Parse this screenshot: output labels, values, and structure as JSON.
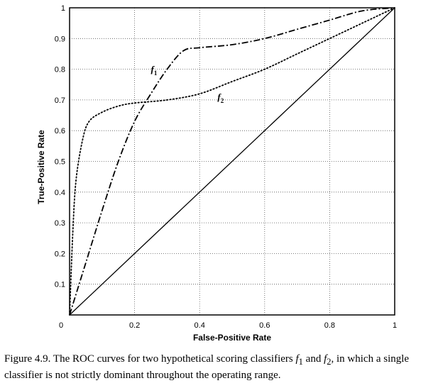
{
  "chart_data": {
    "type": "line",
    "xlabel": "False-Positive Rate",
    "ylabel": "True-Positive Rate",
    "xlim": [
      0,
      1
    ],
    "ylim": [
      0,
      1
    ],
    "grid": true,
    "x_ticks": [
      {
        "value": 0,
        "label": "0"
      },
      {
        "value": 0.2,
        "label": "0.2"
      },
      {
        "value": 0.4,
        "label": "0.4"
      },
      {
        "value": 0.6,
        "label": "0.6"
      },
      {
        "value": 0.8,
        "label": "0.8"
      },
      {
        "value": 1,
        "label": "1"
      }
    ],
    "y_ticks": [
      {
        "value": 0.1,
        "label": "0.1"
      },
      {
        "value": 0.2,
        "label": "0.2"
      },
      {
        "value": 0.3,
        "label": "0.3"
      },
      {
        "value": 0.4,
        "label": "0.4"
      },
      {
        "value": 0.5,
        "label": "0.5"
      },
      {
        "value": 0.6,
        "label": "0.6"
      },
      {
        "value": 0.7,
        "label": "0.7"
      },
      {
        "value": 0.8,
        "label": "0.8"
      },
      {
        "value": 0.9,
        "label": "0.9"
      },
      {
        "value": 1,
        "label": "1"
      }
    ],
    "series": [
      {
        "name": "f1",
        "label_base": "f",
        "label_sub": "1",
        "label_at": [
          0.25,
          0.79
        ],
        "style": "dashdot",
        "x": [
          0,
          0.05,
          0.1,
          0.15,
          0.2,
          0.25,
          0.3,
          0.35,
          0.4,
          0.5,
          0.6,
          0.7,
          0.8,
          0.9,
          1
        ],
        "y": [
          0,
          0.17,
          0.34,
          0.5,
          0.63,
          0.72,
          0.8,
          0.86,
          0.87,
          0.88,
          0.9,
          0.93,
          0.96,
          0.99,
          1
        ]
      },
      {
        "name": "f2",
        "label_base": "f",
        "label_sub": "2",
        "label_at": [
          0.455,
          0.7
        ],
        "style": "dotted",
        "x": [
          0,
          0.01,
          0.02,
          0.04,
          0.06,
          0.1,
          0.15,
          0.2,
          0.3,
          0.4,
          0.5,
          0.6,
          0.7,
          0.8,
          0.9,
          1
        ],
        "y": [
          0,
          0.27,
          0.44,
          0.57,
          0.63,
          0.66,
          0.68,
          0.69,
          0.7,
          0.72,
          0.76,
          0.8,
          0.85,
          0.9,
          0.95,
          1
        ]
      },
      {
        "name": "diagonal",
        "style": "solid",
        "x": [
          0,
          1
        ],
        "y": [
          0,
          1
        ]
      }
    ]
  },
  "caption": {
    "label": "Figure 4.9.",
    "text_before": "The ROC curves for two hypothetical scoring classifiers",
    "f1_base": "f",
    "f1_sub": "1",
    "text_and": "and",
    "f2_base": "f",
    "f2_sub": "2",
    "text_after": ", in which a single classifier is not strictly dominant throughout the operating range."
  }
}
